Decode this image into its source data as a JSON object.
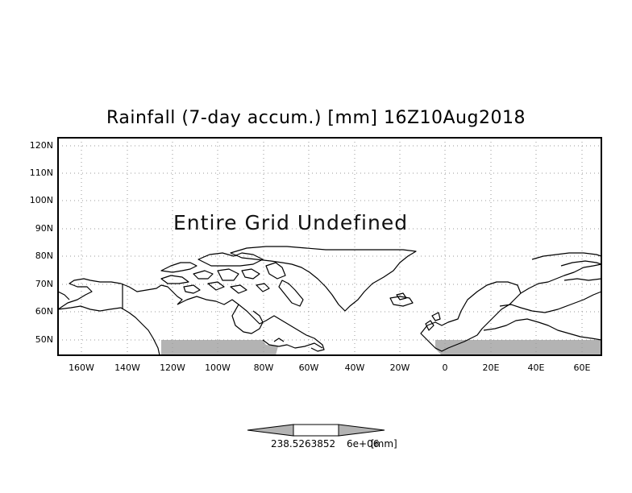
{
  "title": "Rainfall (7-day accum.) [mm] 16Z10Aug2018",
  "message": "Entire Grid Undefined",
  "lat_labels": [
    "120N",
    "110N",
    "100N",
    "90N",
    "80N",
    "70N",
    "60N",
    "50N"
  ],
  "lon_labels": [
    "160W",
    "140W",
    "120W",
    "100W",
    "80W",
    "60W",
    "40W",
    "20W",
    "0",
    "20E",
    "40E",
    "60E"
  ],
  "colorbar": {
    "value_label": "238.5263852",
    "exp_label": "6e+06",
    "unit_label": "[mm]"
  },
  "colors": {
    "mask": "#b3b3b3",
    "coast": "#000000",
    "grid": "#9a9a9a"
  }
}
